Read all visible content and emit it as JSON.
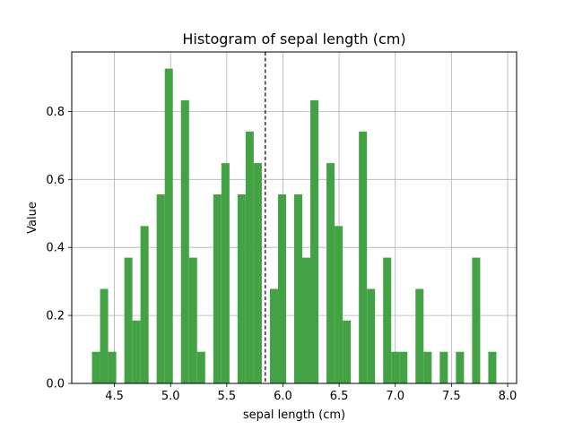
{
  "chart_data": {
    "type": "bar",
    "subtype": "histogram",
    "title": "Histogram of sepal length (cm)",
    "xlabel": "sepal length (cm)",
    "ylabel": "Value",
    "xlim": [
      4.12,
      8.08
    ],
    "ylim": [
      0,
      0.975
    ],
    "x_ticks": [
      "4.5",
      "5.0",
      "5.5",
      "6.0",
      "6.5",
      "7.0",
      "7.5",
      "8.0"
    ],
    "x_tick_values": [
      4.5,
      5.0,
      5.5,
      6.0,
      6.5,
      7.0,
      7.5,
      8.0
    ],
    "y_ticks": [
      "0.0",
      "0.2",
      "0.4",
      "0.6",
      "0.8"
    ],
    "y_tick_values": [
      0.0,
      0.2,
      0.4,
      0.6,
      0.8
    ],
    "bin_edges": [
      4.3,
      4.372,
      4.444,
      4.516,
      4.588,
      4.66,
      4.732,
      4.804,
      4.876,
      4.948,
      5.02,
      5.092,
      5.164,
      5.236,
      5.308,
      5.38,
      5.452,
      5.524,
      5.596,
      5.668,
      5.74,
      5.812,
      5.884,
      5.956,
      6.028,
      6.1,
      6.172,
      6.244,
      6.316,
      6.388,
      6.46,
      6.532,
      6.604,
      6.676,
      6.748,
      6.82,
      6.892,
      6.964,
      7.036,
      7.108,
      7.18,
      7.252,
      7.324,
      7.396,
      7.468,
      7.54,
      7.612,
      7.684,
      7.756,
      7.828,
      7.9
    ],
    "values": [
      0.093,
      0.278,
      0.093,
      0,
      0.37,
      0.185,
      0.463,
      0,
      0.556,
      0.926,
      0,
      0.833,
      0.37,
      0.093,
      0,
      0.556,
      0.648,
      0,
      0.556,
      0.741,
      0.648,
      0,
      0.278,
      0.556,
      0,
      0.556,
      0.37,
      0.833,
      0,
      0.648,
      0.463,
      0.185,
      0,
      0.741,
      0.278,
      0,
      0.37,
      0.093,
      0.093,
      0,
      0.278,
      0.093,
      0,
      0.093,
      0,
      0.093,
      0,
      0.37,
      0,
      0.093
    ],
    "bar_color": "#43a243",
    "mean_line": {
      "x": 5.843,
      "style": "dashed",
      "color": "#000000"
    },
    "grid": true,
    "legend": "none"
  }
}
